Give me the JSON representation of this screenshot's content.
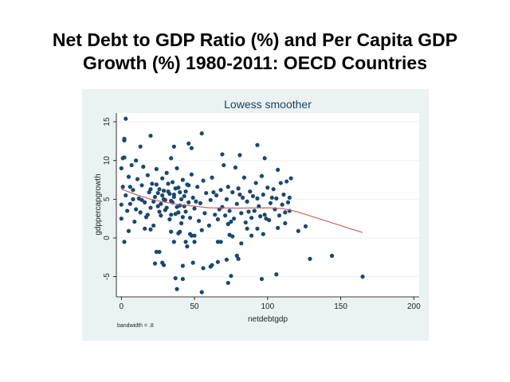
{
  "slide": {
    "title_line1": "Net Debt to GDP Ratio (%) and Per Capita GDP",
    "title_line2": "Growth (%) 1980-2011: OECD Countries"
  },
  "colors": {
    "panel_bg": "#eaf2f3",
    "plot_bg": "#ffffff",
    "points": "#1a476f",
    "smoother": "#c4636a"
  },
  "chart_data": {
    "type": "scatter",
    "title": "Lowess smoother",
    "xlabel": "netdebtgdp",
    "ylabel": "gdppercapgrowth",
    "note": "bandwidth = .8",
    "xlim": [
      -3,
      204
    ],
    "ylim": [
      -7.5,
      16
    ],
    "xticks": [
      0,
      50,
      100,
      150,
      200
    ],
    "yticks": [
      -5,
      0,
      5,
      10,
      15
    ],
    "grid": "horizontal",
    "points": [
      [
        3,
        15.4
      ],
      [
        2,
        12.8
      ],
      [
        2,
        12.6
      ],
      [
        20,
        13.2
      ],
      [
        55,
        13.5
      ],
      [
        13,
        11.8
      ],
      [
        36,
        11.8
      ],
      [
        46,
        12.2
      ],
      [
        48,
        11.6
      ],
      [
        93,
        12
      ],
      [
        69,
        10.8
      ],
      [
        81,
        10.7
      ],
      [
        98,
        10.3
      ],
      [
        1,
        10.3
      ],
      [
        2,
        10.4
      ],
      [
        34,
        10.3
      ],
      [
        121,
        0.9
      ],
      [
        126,
        1.5
      ],
      [
        129,
        -2.7
      ],
      [
        144,
        -2.3
      ],
      [
        165,
        -5
      ],
      [
        2,
        -0.5
      ],
      [
        24,
        -1.8
      ],
      [
        26,
        -1.8
      ],
      [
        23,
        -3.3
      ],
      [
        28,
        -3.2
      ],
      [
        29,
        -3.5
      ],
      [
        37,
        -5.2
      ],
      [
        38,
        -6.6
      ],
      [
        42,
        -5.3
      ],
      [
        42,
        -3.6
      ],
      [
        49,
        -3.2
      ],
      [
        55,
        -7
      ],
      [
        56,
        -3.9
      ],
      [
        61,
        -3.7
      ],
      [
        62,
        -3.5
      ],
      [
        66,
        -3.1
      ],
      [
        72,
        -2.8
      ],
      [
        73,
        -5.8
      ],
      [
        75,
        -4.9
      ],
      [
        79,
        -2.3
      ],
      [
        80,
        -2.7
      ],
      [
        96,
        -5.3
      ],
      [
        106,
        -4.7
      ],
      [
        36,
        -0.5
      ],
      [
        44,
        -0.5
      ],
      [
        45,
        -1.1
      ],
      [
        50,
        -0.5
      ],
      [
        66,
        -0.5
      ],
      [
        68,
        -0.5
      ],
      [
        74,
        0.4
      ],
      [
        76,
        0.2
      ],
      [
        82,
        -0.7
      ],
      [
        89,
        0.3
      ],
      [
        97,
        0.5
      ],
      [
        48,
        0.3
      ],
      [
        50,
        0.3
      ],
      [
        5,
        0.9
      ],
      [
        16,
        1.2
      ],
      [
        20,
        1.1
      ],
      [
        34,
        0.8
      ],
      [
        39,
        0.6
      ],
      [
        40,
        0.8
      ],
      [
        47,
        0.5
      ],
      [
        55,
        1.0
      ],
      [
        73,
        1.8
      ],
      [
        86,
        1.2
      ],
      [
        93,
        1.2
      ],
      [
        107,
        1.3
      ],
      [
        112,
        1.9
      ],
      [
        0,
        9
      ],
      [
        1,
        6.6
      ],
      [
        0,
        4.3
      ],
      [
        0,
        2.5
      ],
      [
        3,
        5.5
      ],
      [
        4,
        3.5
      ],
      [
        5,
        7.9
      ],
      [
        6,
        4.4
      ],
      [
        7,
        9.4
      ],
      [
        8,
        6.2
      ],
      [
        9,
        2.1
      ],
      [
        10,
        10
      ],
      [
        11,
        7.6
      ],
      [
        12,
        5.1
      ],
      [
        13,
        3.3
      ],
      [
        14,
        6.8
      ],
      [
        15,
        9.2
      ],
      [
        16,
        4.6
      ],
      [
        17,
        2.7
      ],
      [
        18,
        8.1
      ],
      [
        19,
        5.9
      ],
      [
        20,
        3.9
      ],
      [
        21,
        7.0
      ],
      [
        22,
        1.6
      ],
      [
        23,
        5.3
      ],
      [
        24,
        8.9
      ],
      [
        25,
        4.1
      ],
      [
        26,
        6.3
      ],
      [
        27,
        2.9
      ],
      [
        28,
        7.7
      ],
      [
        29,
        5.0
      ],
      [
        30,
        3.6
      ],
      [
        31,
        8.4
      ],
      [
        32,
        6.0
      ],
      [
        33,
        2.4
      ],
      [
        34,
        4.8
      ],
      [
        35,
        7.2
      ],
      [
        36,
        5.6
      ],
      [
        37,
        3.1
      ],
      [
        38,
        9.0
      ],
      [
        39,
        6.5
      ],
      [
        40,
        4.2
      ],
      [
        41,
        1.9
      ],
      [
        42,
        7.5
      ],
      [
        43,
        5.4
      ],
      [
        44,
        3.4
      ],
      [
        45,
        6.9
      ],
      [
        46,
        4.6
      ],
      [
        47,
        2.6
      ],
      [
        48,
        8.2
      ],
      [
        49,
        5.2
      ],
      [
        50,
        3.8
      ],
      [
        52,
        6.6
      ],
      [
        53,
        2.2
      ],
      [
        54,
        4.5
      ],
      [
        56,
        7.4
      ],
      [
        57,
        3.2
      ],
      [
        58,
        5.8
      ],
      [
        60,
        1.6
      ],
      [
        61,
        4.9
      ],
      [
        62,
        7.8
      ],
      [
        64,
        3.0
      ],
      [
        65,
        5.5
      ],
      [
        66,
        2.4
      ],
      [
        68,
        6.2
      ],
      [
        69,
        4.0
      ],
      [
        70,
        9.4
      ],
      [
        71,
        2.9
      ],
      [
        72,
        5.0
      ],
      [
        73,
        6.6
      ],
      [
        74,
        3.5
      ],
      [
        76,
        5.9
      ],
      [
        77,
        2.5
      ],
      [
        78,
        9.1
      ],
      [
        79,
        4.4
      ],
      [
        80,
        6.4
      ],
      [
        82,
        3.2
      ],
      [
        83,
        5.2
      ],
      [
        84,
        7.8
      ],
      [
        85,
        2.0
      ],
      [
        86,
        4.7
      ],
      [
        88,
        6.0
      ],
      [
        89,
        2.6
      ],
      [
        90,
        5.4
      ],
      [
        91,
        3.5
      ],
      [
        92,
        7.1
      ],
      [
        94,
        4.1
      ],
      [
        95,
        2.8
      ],
      [
        96,
        8.0
      ],
      [
        97,
        5.6
      ],
      [
        98,
        3.0
      ],
      [
        100,
        6.5
      ],
      [
        101,
        2.3
      ],
      [
        102,
        4.5
      ],
      [
        104,
        6.3
      ],
      [
        105,
        3.7
      ],
      [
        106,
        5.1
      ],
      [
        107,
        8.8
      ],
      [
        108,
        2.9
      ],
      [
        109,
        7.1
      ],
      [
        110,
        4.3
      ],
      [
        111,
        5.6
      ],
      [
        112,
        3.3
      ],
      [
        113,
        7.3
      ],
      [
        114,
        4.6
      ],
      [
        115,
        5.2
      ],
      [
        115,
        3.5
      ],
      [
        116,
        7.7
      ],
      [
        25,
        5.8
      ],
      [
        27,
        4.4
      ],
      [
        29,
        6.1
      ],
      [
        31,
        3.9
      ],
      [
        33,
        5.7
      ],
      [
        35,
        4.6
      ],
      [
        37,
        6.4
      ],
      [
        39,
        3.3
      ],
      [
        41,
        5.0
      ],
      [
        43,
        4.1
      ],
      [
        30,
        4.9
      ],
      [
        32,
        7.0
      ],
      [
        34,
        3.0
      ],
      [
        36,
        5.3
      ],
      [
        38,
        4.0
      ],
      [
        40,
        5.9
      ],
      [
        42,
        2.7
      ],
      [
        44,
        6.0
      ],
      [
        26,
        3.4
      ],
      [
        28,
        5.5
      ],
      [
        22,
        4.7
      ],
      [
        24,
        6.9
      ],
      [
        18,
        3.0
      ],
      [
        20,
        6.3
      ],
      [
        14,
        4.9
      ],
      [
        10,
        3.7
      ],
      [
        8,
        5.0
      ],
      [
        6,
        6.6
      ],
      [
        46,
        6.8
      ],
      [
        51,
        4.7
      ],
      [
        63,
        5.9
      ],
      [
        67,
        3.7
      ],
      [
        75,
        2.1
      ],
      [
        81,
        5.6
      ],
      [
        87,
        3.4
      ],
      [
        93,
        5.1
      ],
      [
        99,
        2.5
      ],
      [
        103,
        5.2
      ]
    ],
    "lowess": [
      [
        0,
        6.3
      ],
      [
        10,
        5.6
      ],
      [
        20,
        5.0
      ],
      [
        30,
        4.6
      ],
      [
        40,
        4.3
      ],
      [
        50,
        4.1
      ],
      [
        60,
        3.9
      ],
      [
        80,
        3.85
      ],
      [
        100,
        3.9
      ],
      [
        110,
        3.8
      ],
      [
        120,
        3.4
      ],
      [
        130,
        2.8
      ],
      [
        140,
        2.2
      ],
      [
        150,
        1.6
      ],
      [
        160,
        1.0
      ],
      [
        165,
        0.7
      ]
    ]
  }
}
